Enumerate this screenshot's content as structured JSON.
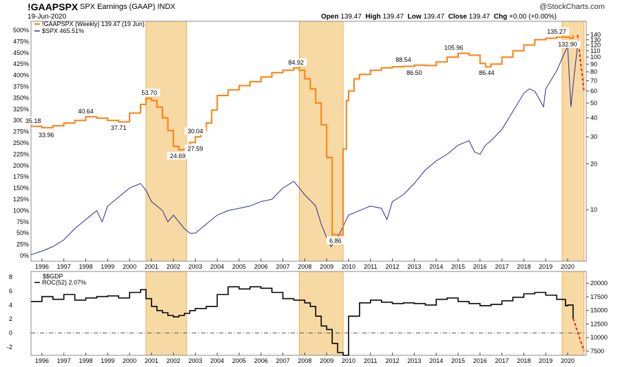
{
  "header": {
    "symbol": "!GAAPSPX",
    "description": "SPX Earnings (GAAP) INDX",
    "date": "19-Jun-2020",
    "watermark": "@StockCharts.com",
    "open_label": "Open",
    "open": "139.47",
    "high_label": "High",
    "high": "139.47",
    "low_label": "Low",
    "low": "139.47",
    "close_label": "Close",
    "close": "139.47",
    "chg_label": "Chg",
    "chg": "+0.00 (+0.00%)"
  },
  "legend": {
    "earnings": "!GAAPSPX (Weekly) 139.47 (19 Jun)",
    "spx": "$SPX 465.51%",
    "gdp_symbol": "$$GDP",
    "roc": "ROC(52) 2.07%"
  },
  "colors": {
    "earnings": "#ff7f0e",
    "spx": "#2a2a9a",
    "gdp": "#000000",
    "recession_fill": "#f7d9a3",
    "recession_edge": "#f0b24a",
    "projection": "#e8251b"
  },
  "chart_data": [
    {
      "type": "line",
      "x_ticks": [
        "1996",
        "1997",
        "1998",
        "1999",
        "2000",
        "2001",
        "2002",
        "2003",
        "2004",
        "2005",
        "2006",
        "2007",
        "2008",
        "2009",
        "2010",
        "2011",
        "2012",
        "2013",
        "2014",
        "2015",
        "2016",
        "2017",
        "2018",
        "2019",
        "2020"
      ],
      "left_axis": {
        "ticks": [
          "0%",
          "25%",
          "50%",
          "75%",
          "100%",
          "125%",
          "150%",
          "175%",
          "200%",
          "225%",
          "250%",
          "275%",
          "300%",
          "325%",
          "350%",
          "375%",
          "400%",
          "425%",
          "450%",
          "475%",
          "500%"
        ],
        "range": [
          0,
          500
        ]
      },
      "right_axis": {
        "ticks": [
          "10",
          "20",
          "30",
          "40",
          "50",
          "60",
          "70",
          "80",
          "90",
          "100",
          "110",
          "120",
          "130",
          "140"
        ],
        "scale": "log"
      },
      "shaded_periods": [
        [
          2000.75,
          2002.6
        ],
        [
          2007.75,
          2009.75
        ],
        [
          2019.75,
          2020.75
        ]
      ],
      "series": [
        {
          "name": "!GAAPSPX (Weekly) 139.47 (19 Jun)",
          "x": [
            1995.5,
            1996.0,
            1996.5,
            1997.0,
            1997.5,
            1998.0,
            1998.5,
            1999.0,
            1999.5,
            2000.0,
            2000.5,
            2000.75,
            2001.0,
            2001.25,
            2001.5,
            2001.75,
            2002.0,
            2002.25,
            2002.5,
            2002.75,
            2003.0,
            2003.25,
            2003.5,
            2003.75,
            2004.0,
            2004.5,
            2005.0,
            2005.5,
            2006.0,
            2006.5,
            2007.0,
            2007.5,
            2007.75,
            2008.0,
            2008.25,
            2008.5,
            2008.75,
            2009.0,
            2009.25,
            2009.5,
            2009.75,
            2009.9,
            2010.0,
            2010.25,
            2010.5,
            2011.0,
            2011.5,
            2012.0,
            2012.5,
            2013.0,
            2013.5,
            2014.0,
            2014.5,
            2015.0,
            2015.5,
            2016.0,
            2016.25,
            2016.5,
            2017.0,
            2017.5,
            2018.0,
            2018.5,
            2019.0,
            2019.5,
            2019.75,
            2020.0,
            2020.1,
            2020.25
          ],
          "y": [
            35.18,
            34.5,
            35.5,
            37,
            38.5,
            40.64,
            39.8,
            38.5,
            37.71,
            43,
            49,
            53.7,
            52,
            47,
            40,
            33,
            26,
            24.69,
            25,
            27.59,
            30.04,
            33,
            37,
            45,
            56,
            61,
            65,
            69,
            74,
            79,
            82,
            84.92,
            82,
            72,
            62,
            50,
            36,
            22,
            6.86,
            6.86,
            25,
            52,
            60,
            72,
            77,
            82,
            85,
            86.5,
            87,
            88.54,
            88,
            93,
            100,
            105.96,
            103,
            91,
            86.44,
            90,
            100,
            110,
            120,
            130,
            133,
            135.27,
            135.27,
            135.27,
            132.9,
            139.47
          ]
        },
        {
          "name": "$SPX 465.51%",
          "x": [
            1995.5,
            1996.0,
            1996.5,
            1997.0,
            1997.5,
            1998.0,
            1998.5,
            1998.75,
            1999.0,
            1999.5,
            2000.0,
            2000.5,
            2000.75,
            2001.0,
            2001.5,
            2001.75,
            2002.0,
            2002.5,
            2002.75,
            2003.0,
            2003.5,
            2004.0,
            2004.5,
            2005.0,
            2005.5,
            2006.0,
            2006.5,
            2007.0,
            2007.5,
            2007.75,
            2008.0,
            2008.5,
            2008.75,
            2009.0,
            2009.2,
            2009.5,
            2010.0,
            2010.5,
            2011.0,
            2011.5,
            2011.75,
            2012.0,
            2012.5,
            2013.0,
            2013.5,
            2014.0,
            2014.5,
            2015.0,
            2015.5,
            2015.75,
            2016.0,
            2016.25,
            2016.5,
            2017.0,
            2017.5,
            2018.0,
            2018.25,
            2018.5,
            2018.9,
            2019.0,
            2019.5,
            2020.0,
            2020.15,
            2020.3,
            2020.45
          ],
          "y": [
            2,
            10,
            20,
            35,
            60,
            80,
            100,
            75,
            110,
            130,
            150,
            160,
            145,
            120,
            100,
            75,
            90,
            60,
            50,
            50,
            70,
            90,
            100,
            105,
            110,
            120,
            125,
            150,
            165,
            150,
            135,
            110,
            70,
            40,
            20,
            40,
            90,
            100,
            110,
            105,
            80,
            120,
            135,
            160,
            190,
            210,
            225,
            245,
            255,
            230,
            225,
            245,
            255,
            280,
            320,
            360,
            370,
            365,
            330,
            370,
            410,
            465,
            330,
            400,
            465
          ]
        }
      ],
      "labels": [
        {
          "x": 1995.6,
          "y": 35.18,
          "text": "35.18"
        },
        {
          "x": 1996.2,
          "y": 33.96,
          "text": "33.96"
        },
        {
          "x": 1998.0,
          "y": 40.64,
          "text": "40.64"
        },
        {
          "x": 1999.5,
          "y": 37.71,
          "text": "37.71"
        },
        {
          "x": 2000.9,
          "y": 53.7,
          "text": "53.70"
        },
        {
          "x": 2002.2,
          "y": 24.69,
          "text": "24.69"
        },
        {
          "x": 2003.0,
          "y": 30.04,
          "text": "30.04"
        },
        {
          "x": 2003.0,
          "y": 27.59,
          "text": "27.59"
        },
        {
          "x": 2007.6,
          "y": 84.92,
          "text": "84.92"
        },
        {
          "x": 2009.4,
          "y": 6.86,
          "text": "6.86"
        },
        {
          "x": 2012.5,
          "y": 88.54,
          "text": "88.54"
        },
        {
          "x": 2013.0,
          "y": 86.5,
          "text": "86.50"
        },
        {
          "x": 2014.8,
          "y": 105.96,
          "text": "105.96"
        },
        {
          "x": 2016.3,
          "y": 86.44,
          "text": "86.44"
        },
        {
          "x": 2019.5,
          "y": 135.27,
          "text": "135.27"
        },
        {
          "x": 2020.0,
          "y": 132.9,
          "text": "132.90"
        }
      ],
      "projection": {
        "x": [
          2020.45,
          2020.75
        ],
        "y": [
          139.47,
          60
        ]
      }
    },
    {
      "type": "line",
      "x_ticks": [
        "1996",
        "1997",
        "1998",
        "1999",
        "2000",
        "2001",
        "2002",
        "2003",
        "2004",
        "2005",
        "2006",
        "2007",
        "2008",
        "2009",
        "2010",
        "2011",
        "2012",
        "2013",
        "2014",
        "2015",
        "2016",
        "2017",
        "2018",
        "2019",
        "2020"
      ],
      "left_axis": {
        "ticks": [
          "-2",
          "0",
          "2",
          "4",
          "6",
          "8"
        ],
        "range": [
          -3,
          8.5
        ]
      },
      "right_axis": {
        "ticks": [
          "7500",
          "10000",
          "12500",
          "15000",
          "17500",
          "20000"
        ]
      },
      "series": [
        {
          "name": "ROC(52) 2.07%",
          "x": [
            1995.5,
            1996.0,
            1996.5,
            1997.0,
            1997.5,
            1998.0,
            1998.5,
            1999.0,
            1999.5,
            2000.0,
            2000.5,
            2000.75,
            2001.0,
            2001.25,
            2001.5,
            2001.75,
            2002.0,
            2002.25,
            2002.5,
            2002.75,
            2003.0,
            2003.5,
            2004.0,
            2004.5,
            2005.0,
            2005.5,
            2006.0,
            2006.5,
            2007.0,
            2007.5,
            2008.0,
            2008.25,
            2008.5,
            2008.75,
            2009.0,
            2009.25,
            2009.5,
            2009.75,
            2009.85,
            2010.0,
            2010.5,
            2011.0,
            2011.5,
            2012.0,
            2012.5,
            2013.0,
            2013.5,
            2014.0,
            2014.5,
            2015.0,
            2015.5,
            2016.0,
            2016.5,
            2017.0,
            2017.5,
            2018.0,
            2018.5,
            2019.0,
            2019.5,
            2019.9,
            2020.0,
            2020.25
          ],
          "y": [
            4.5,
            5.2,
            4.8,
            5.5,
            4.7,
            5.0,
            5.2,
            5.3,
            5.0,
            5.8,
            6.2,
            4.9,
            3.8,
            3.2,
            2.9,
            2.5,
            2.3,
            2.5,
            2.8,
            3.2,
            3.5,
            3.8,
            5.5,
            6.6,
            6.3,
            6.6,
            6.4,
            5.8,
            4.9,
            4.7,
            4.3,
            3.8,
            2.4,
            1.0,
            0.5,
            -1.5,
            -2.8,
            -3.2,
            -3.2,
            2.4,
            4.3,
            4.7,
            4.4,
            4.2,
            4.3,
            4.2,
            4.0,
            4.8,
            5.0,
            4.5,
            4.2,
            3.9,
            4.1,
            4.6,
            5.1,
            5.6,
            5.8,
            5.4,
            4.8,
            3.9,
            4.0,
            2.07
          ]
        }
      ],
      "zero_line": 0,
      "projection": {
        "x": [
          2020.25,
          2020.75
        ],
        "y": [
          2.07,
          -2.6
        ]
      }
    }
  ]
}
